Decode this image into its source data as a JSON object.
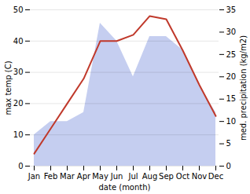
{
  "chart_data": {
    "type": "line",
    "xlabel": "date (month)",
    "ylabel": "max temp (C)",
    "y2label": "med. precipitation (kg/m2)",
    "categories": [
      "Jan",
      "Feb",
      "Mar",
      "Apr",
      "May",
      "Jun",
      "Jul",
      "Aug",
      "Sep",
      "Oct",
      "Nov",
      "Dec"
    ],
    "series": [
      {
        "type": "area",
        "axis": "y2",
        "color": "#c5cef0",
        "values": [
          7,
          10,
          10,
          12,
          32,
          28,
          20,
          29,
          29,
          26,
          18,
          12
        ]
      },
      {
        "type": "line",
        "color": "#c0392b",
        "values": [
          4,
          12,
          20,
          28,
          40,
          40,
          42,
          48,
          47,
          37,
          26,
          16
        ]
      }
    ],
    "ylim": [
      0,
      50
    ],
    "yticks": [
      0,
      10,
      20,
      30,
      40,
      50
    ],
    "y2lim": [
      0,
      35
    ],
    "y2ticks": [
      0,
      5,
      10,
      15,
      20,
      25,
      30,
      35
    ],
    "grid": true
  }
}
